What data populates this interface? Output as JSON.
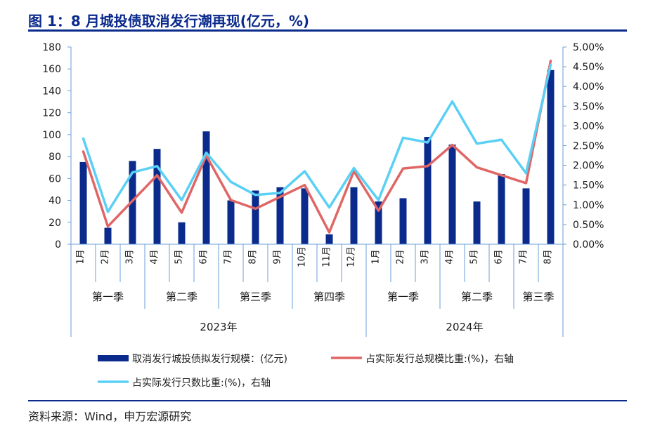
{
  "title": "图 1：8 月城投债取消发行潮再现(亿元，%)",
  "source": "资料来源：Wind，申万宏源研究",
  "chart_data": {
    "type": "bar",
    "categories": [
      "1月",
      "2月",
      "3月",
      "4月",
      "5月",
      "6月",
      "7月",
      "8月",
      "9月",
      "10月",
      "11月",
      "12月",
      "1月",
      "2月",
      "3月",
      "4月",
      "5月",
      "6月",
      "7月",
      "8月"
    ],
    "quarter_groups": [
      {
        "label": "第一季",
        "span": 3
      },
      {
        "label": "第二季",
        "span": 3
      },
      {
        "label": "第三季",
        "span": 3
      },
      {
        "label": "第四季",
        "span": 3
      },
      {
        "label": "第一季",
        "span": 3
      },
      {
        "label": "第二季",
        "span": 3
      },
      {
        "label": "第三季",
        "span": 2
      }
    ],
    "year_groups": [
      {
        "label": "2023年",
        "span": 12
      },
      {
        "label": "2024年",
        "span": 8
      }
    ],
    "series": [
      {
        "name": "取消发行城投债拟发行规模：(亿元)",
        "type": "bar",
        "axis": "left",
        "color": "#0a2a8c",
        "values": [
          75,
          15,
          76,
          87,
          20,
          103,
          40,
          49,
          52,
          51,
          9,
          52,
          39,
          42,
          98,
          91,
          39,
          64,
          51,
          159
        ]
      },
      {
        "name": "占实际发行总规模比重:(%)，右轴",
        "type": "line",
        "axis": "right",
        "color": "#e06666",
        "values": [
          2.35,
          0.45,
          1.1,
          1.75,
          0.8,
          2.25,
          1.12,
          0.9,
          1.2,
          1.5,
          0.3,
          1.85,
          0.85,
          1.92,
          1.98,
          2.52,
          1.95,
          1.75,
          1.55,
          4.65
        ]
      },
      {
        "name": "占实际发行只数比重:(%)，右轴",
        "type": "line",
        "axis": "right",
        "color": "#5ad0f5",
        "values": [
          2.68,
          0.82,
          1.82,
          1.98,
          1.12,
          2.32,
          1.58,
          1.25,
          1.3,
          1.85,
          0.93,
          1.93,
          1.12,
          2.7,
          2.58,
          3.62,
          2.55,
          2.65,
          1.8,
          4.55
        ]
      }
    ],
    "left_axis": {
      "ylim": [
        0,
        180
      ],
      "ticks": [
        "0",
        "20",
        "40",
        "60",
        "80",
        "100",
        "120",
        "140",
        "160",
        "180"
      ]
    },
    "right_axis": {
      "ylim": [
        0,
        5
      ],
      "ticks": [
        "0.00%",
        "0.50%",
        "1.00%",
        "1.50%",
        "2.00%",
        "2.50%",
        "3.00%",
        "3.50%",
        "4.00%",
        "4.50%",
        "5.00%"
      ]
    },
    "grid": false,
    "legend_position": "bottom"
  }
}
